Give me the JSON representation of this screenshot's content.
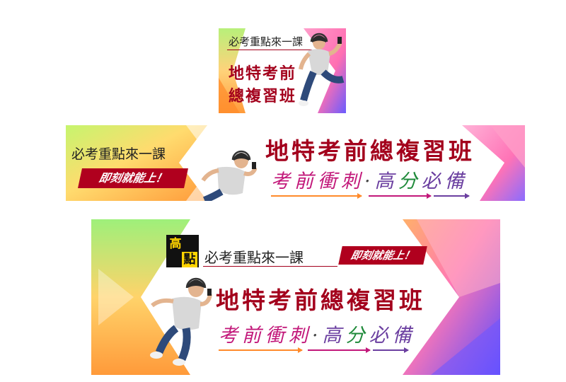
{
  "brand": {
    "char1": "高",
    "char2": "點"
  },
  "headline": "必考重點來一課",
  "title": "地特考前總複習班",
  "title_line1": "地特考前",
  "title_line2": "總複習班",
  "tagline": "即刻就能上！",
  "subtitle": {
    "part1": "考前衝刺",
    "dot": "·",
    "part2_a": "高",
    "part2_b": "分",
    "part2_c": "必備"
  },
  "colors": {
    "title_red": "#a3001c",
    "tag_red": "#b0001e",
    "pink": "#c2187a",
    "purple": "#6b3fa0",
    "green": "#1f8a3a"
  }
}
